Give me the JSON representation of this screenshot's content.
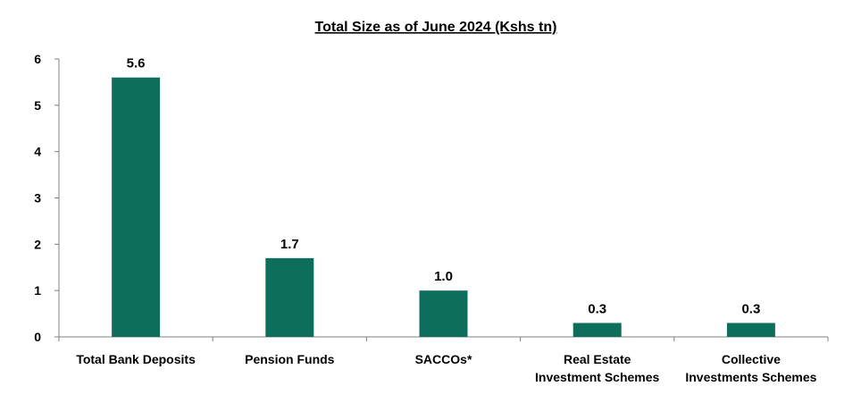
{
  "chart_data": {
    "type": "bar",
    "title": "Total Size as of June 2024 (Kshs tn)",
    "xlabel": "",
    "ylabel": "",
    "ylim": [
      0,
      6
    ],
    "yticks": [
      "0",
      "1",
      "2",
      "3",
      "4",
      "5",
      "6"
    ],
    "categories": [
      [
        "Total Bank Deposits"
      ],
      [
        "Pension Funds"
      ],
      [
        "SACCOs*"
      ],
      [
        "Real Estate",
        "Investment Schemes"
      ],
      [
        "Collective",
        "Investments Schemes"
      ]
    ],
    "values": [
      5.6,
      1.7,
      1.0,
      0.3,
      0.3
    ],
    "value_labels": [
      "5.6",
      "1.7",
      "1.0",
      "0.3",
      "0.3"
    ],
    "grid": false,
    "legend": "none",
    "bar_color": "#0e6e5c"
  }
}
